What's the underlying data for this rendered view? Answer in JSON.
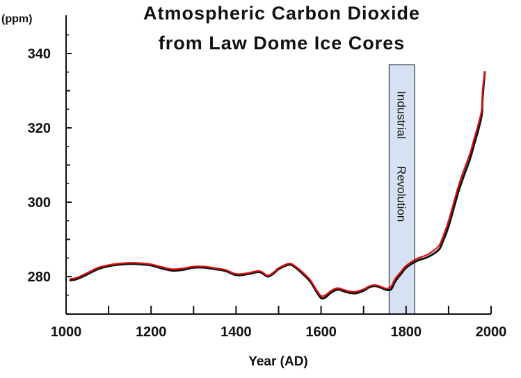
{
  "chart_data": {
    "type": "line",
    "title_line1": "Atmospheric Carbon Dioxide",
    "title_line2": "from Law Dome Ice Cores",
    "xlabel": "Year (AD)",
    "ylabel": "(ppm)",
    "xlim": [
      1000,
      2000
    ],
    "ylim": [
      270,
      345
    ],
    "x_ticks": [
      1000,
      1200,
      1400,
      1600,
      1800,
      2000
    ],
    "x_minor_ticks": [
      1100,
      1300,
      1500,
      1700,
      1900
    ],
    "y_ticks": [
      280,
      300,
      320,
      340
    ],
    "y_minor_ticks": [
      290,
      310,
      330
    ],
    "grid": false,
    "annotation": {
      "label_line1": "Industrial",
      "label_line2": "Revolution",
      "x_start": 1760,
      "x_end": 1820,
      "y_top": 337,
      "fill": "#d6e2f3"
    },
    "series": [
      {
        "color": "#111111",
        "x": [
          1010,
          1025,
          1050,
          1075,
          1100,
          1125,
          1150,
          1175,
          1200,
          1225,
          1250,
          1275,
          1300,
          1325,
          1350,
          1375,
          1400,
          1425,
          1450,
          1460,
          1475,
          1490,
          1500,
          1525,
          1540,
          1560,
          1575,
          1590,
          1600,
          1610,
          1625,
          1640,
          1660,
          1680,
          1700,
          1715,
          1730,
          1745,
          1755,
          1765,
          1775,
          1790,
          1800,
          1825,
          1850,
          1875,
          1885,
          1900,
          1925,
          1950,
          1960,
          1970,
          1978,
          1980,
          1985
        ],
        "y": [
          279,
          279.3,
          280.6,
          282,
          282.8,
          283.2,
          283.4,
          283.3,
          283,
          282.2,
          281.6,
          281.8,
          282.4,
          282.4,
          282,
          281.5,
          280.4,
          280.6,
          281.2,
          281,
          280,
          281,
          282,
          283.2,
          282.4,
          280.4,
          278.6,
          275.8,
          274.2,
          274.4,
          275.8,
          276.5,
          275.8,
          275.5,
          276.2,
          277.2,
          277.4,
          276.8,
          276.4,
          276.6,
          278.8,
          281,
          282.4,
          284.2,
          285.2,
          287,
          289,
          293.5,
          303.5,
          311.5,
          315.5,
          319.5,
          323.5,
          328,
          335
        ]
      },
      {
        "color": "#e01010",
        "x": [
          1010,
          1025,
          1050,
          1075,
          1100,
          1125,
          1150,
          1175,
          1200,
          1225,
          1250,
          1275,
          1300,
          1325,
          1350,
          1375,
          1400,
          1425,
          1450,
          1460,
          1475,
          1490,
          1500,
          1525,
          1540,
          1560,
          1575,
          1590,
          1600,
          1610,
          1625,
          1640,
          1660,
          1680,
          1700,
          1715,
          1730,
          1745,
          1755,
          1765,
          1775,
          1790,
          1800,
          1825,
          1850,
          1875,
          1885,
          1900,
          1925,
          1950,
          1960,
          1970,
          1978,
          1980,
          1985
        ],
        "y": [
          279.4,
          279.7,
          281,
          282.4,
          283.1,
          283.5,
          283.7,
          283.6,
          283.3,
          282.6,
          282,
          282.2,
          282.7,
          282.7,
          282.3,
          281.8,
          280.7,
          280.9,
          281.5,
          281.3,
          280.3,
          281.3,
          282.3,
          283.5,
          282.7,
          280.8,
          279,
          276.3,
          274.8,
          275,
          276.3,
          276.9,
          276.2,
          275.9,
          276.6,
          277.5,
          277.7,
          277.1,
          276.8,
          277.4,
          279.5,
          281.6,
          282.9,
          284.8,
          285.9,
          288,
          290.2,
          295,
          305,
          313,
          317,
          321,
          325,
          330,
          335
        ]
      }
    ]
  }
}
